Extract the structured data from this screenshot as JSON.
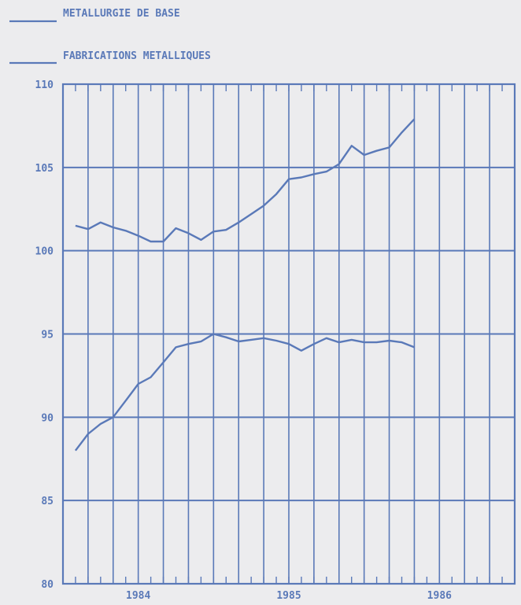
{
  "chart_data": {
    "type": "line",
    "title": "",
    "xlabel": "",
    "ylabel": "",
    "ylim": [
      80,
      110
    ],
    "yticks": [
      "110",
      "105",
      "100",
      "95",
      "90",
      "85",
      "80"
    ],
    "xlim": [
      1983.5,
      1986.5
    ],
    "year_labels": [
      "1984",
      "1985",
      "1986"
    ],
    "grid": true,
    "legend_position": "top-left",
    "line_color": "#5a79b8",
    "series": [
      {
        "name": "METALLURGIE DE BASE",
        "points": [
          {
            "x": 1983.583,
            "y": 88.0
          },
          {
            "x": 1983.667,
            "y": 89.0
          },
          {
            "x": 1983.75,
            "y": 89.6
          },
          {
            "x": 1983.833,
            "y": 90.0
          },
          {
            "x": 1983.917,
            "y": 91.0
          },
          {
            "x": 1984.0,
            "y": 92.0
          },
          {
            "x": 1984.083,
            "y": 92.4
          },
          {
            "x": 1984.167,
            "y": 93.3
          },
          {
            "x": 1984.25,
            "y": 94.2
          },
          {
            "x": 1984.333,
            "y": 94.4
          },
          {
            "x": 1984.417,
            "y": 94.55
          },
          {
            "x": 1984.5,
            "y": 95.0
          },
          {
            "x": 1984.583,
            "y": 94.8
          },
          {
            "x": 1984.667,
            "y": 94.55
          },
          {
            "x": 1984.75,
            "y": 94.65
          },
          {
            "x": 1984.833,
            "y": 94.75
          },
          {
            "x": 1984.917,
            "y": 94.6
          },
          {
            "x": 1985.0,
            "y": 94.4
          },
          {
            "x": 1985.083,
            "y": 94.0
          },
          {
            "x": 1985.167,
            "y": 94.4
          },
          {
            "x": 1985.25,
            "y": 94.75
          },
          {
            "x": 1985.333,
            "y": 94.5
          },
          {
            "x": 1985.417,
            "y": 94.65
          },
          {
            "x": 1985.5,
            "y": 94.5
          },
          {
            "x": 1985.583,
            "y": 94.5
          },
          {
            "x": 1985.667,
            "y": 94.6
          },
          {
            "x": 1985.75,
            "y": 94.5
          },
          {
            "x": 1985.833,
            "y": 94.2
          }
        ]
      },
      {
        "name": "FABRICATIONS METALLIQUES",
        "points": [
          {
            "x": 1983.583,
            "y": 101.5
          },
          {
            "x": 1983.667,
            "y": 101.3
          },
          {
            "x": 1983.75,
            "y": 101.7
          },
          {
            "x": 1983.833,
            "y": 101.4
          },
          {
            "x": 1983.917,
            "y": 101.2
          },
          {
            "x": 1984.0,
            "y": 100.9
          },
          {
            "x": 1984.083,
            "y": 100.55
          },
          {
            "x": 1984.167,
            "y": 100.55
          },
          {
            "x": 1984.25,
            "y": 101.35
          },
          {
            "x": 1984.333,
            "y": 101.05
          },
          {
            "x": 1984.417,
            "y": 100.65
          },
          {
            "x": 1984.5,
            "y": 101.15
          },
          {
            "x": 1984.583,
            "y": 101.25
          },
          {
            "x": 1984.667,
            "y": 101.7
          },
          {
            "x": 1984.75,
            "y": 102.2
          },
          {
            "x": 1984.833,
            "y": 102.7
          },
          {
            "x": 1984.917,
            "y": 103.4
          },
          {
            "x": 1985.0,
            "y": 104.3
          },
          {
            "x": 1985.083,
            "y": 104.4
          },
          {
            "x": 1985.167,
            "y": 104.6
          },
          {
            "x": 1985.25,
            "y": 104.75
          },
          {
            "x": 1985.333,
            "y": 105.2
          },
          {
            "x": 1985.417,
            "y": 106.3
          },
          {
            "x": 1985.5,
            "y": 105.75
          },
          {
            "x": 1985.583,
            "y": 106.0
          },
          {
            "x": 1985.667,
            "y": 106.2
          },
          {
            "x": 1985.75,
            "y": 107.1
          },
          {
            "x": 1985.833,
            "y": 107.9
          }
        ]
      }
    ]
  }
}
